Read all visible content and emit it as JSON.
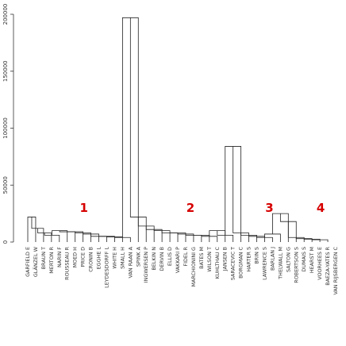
{
  "chart_data": {
    "type": "dendrogram",
    "y_axis": {
      "ylim": [
        0,
        200000
      ],
      "ticks": [
        0,
        50000,
        100000,
        150000,
        200000
      ],
      "tick_labels": [
        "0",
        "50000",
        "100000",
        "150000",
        "200000"
      ]
    },
    "leaves": [
      "GARFIELD E",
      "GLÄNZEL W",
      "BRAUN T",
      "MERTON R",
      "NARIN F",
      "ROUSSEAU R",
      "MOED H",
      "PRICE D",
      "CRONIN B",
      "EGGHE L",
      "LEYDESDORFF L",
      "WHITE H",
      "SMALL H",
      "VAN RAAN A",
      "SPINK A",
      "INGWERSEN P",
      "BELKIN N",
      "DERVIN B",
      "ELLIS D",
      "VAKKARI P",
      "FIDEL R",
      "MARCHIONINI G",
      "BATES M",
      "WILSON T",
      "KUHLTHAU C",
      "JANSEN B",
      "SARACEVIC T",
      "BORGMAN C",
      "HARTER S",
      "BRIN S",
      "LAWRENCE S",
      "BARLAN J",
      "THELWALL M",
      "SALTON G",
      "ROBERTSON S",
      "DUMAIS S",
      "HEARST M",
      "VOORHEES E",
      "BAEZA-YATES R",
      "VAN RIJSBERGEN C"
    ],
    "merges": [
      [
        0,
        1,
        22000
      ],
      [
        1,
        2,
        12000
      ],
      [
        2,
        3,
        8000
      ],
      [
        3,
        4,
        6000
      ],
      [
        4,
        5,
        10000
      ],
      [
        5,
        6,
        9000
      ],
      [
        6,
        7,
        9000
      ],
      [
        7,
        8,
        8000
      ],
      [
        8,
        9,
        7000
      ],
      [
        9,
        10,
        5000
      ],
      [
        10,
        11,
        5000
      ],
      [
        11,
        12,
        4500
      ],
      [
        12,
        13,
        4000
      ],
      [
        13,
        14,
        197000
      ],
      [
        14,
        15,
        22000
      ],
      [
        15,
        16,
        14000
      ],
      [
        16,
        17,
        11000
      ],
      [
        17,
        18,
        10000
      ],
      [
        18,
        19,
        8000
      ],
      [
        19,
        20,
        8000
      ],
      [
        20,
        21,
        7000
      ],
      [
        21,
        22,
        6000
      ],
      [
        22,
        23,
        6000
      ],
      [
        23,
        24,
        5000
      ],
      [
        24,
        25,
        10000
      ],
      [
        25,
        26,
        6000
      ],
      [
        26,
        27,
        84000
      ],
      [
        27,
        28,
        8000
      ],
      [
        28,
        29,
        6000
      ],
      [
        29,
        30,
        5000
      ],
      [
        30,
        31,
        4000
      ],
      [
        31,
        32,
        7000
      ],
      [
        32,
        33,
        25000
      ],
      [
        33,
        34,
        18000
      ],
      [
        34,
        35,
        4000
      ],
      [
        35,
        36,
        3000
      ],
      [
        36,
        37,
        2500
      ],
      [
        37,
        38,
        2000
      ]
    ],
    "clusters": [
      {
        "label": "1",
        "first": 0,
        "last": 13
      },
      {
        "label": "2",
        "first": 14,
        "last": 26
      },
      {
        "label": "3",
        "first": 27,
        "last": 33
      },
      {
        "label": "4",
        "first": 34,
        "last": 39
      }
    ],
    "cluster_label_color": "#d60000",
    "line_color": "#222222",
    "axis_color": "#333333"
  }
}
